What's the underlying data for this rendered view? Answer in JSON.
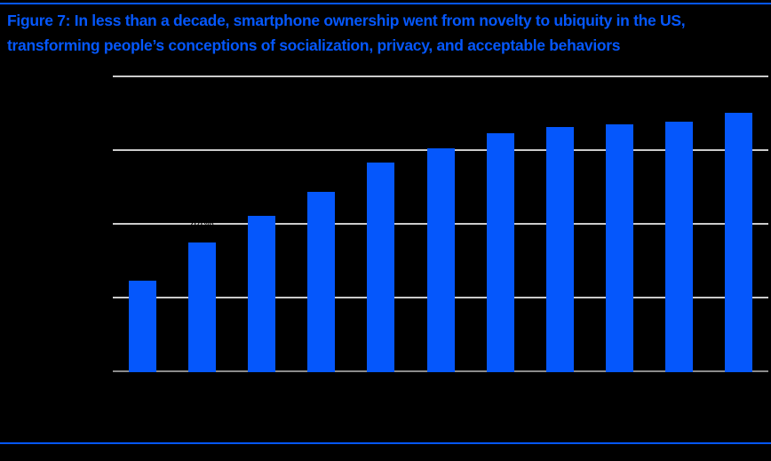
{
  "header": {
    "title_line1": "Figure 7: In less than a decade, smartphone ownership went from novelty to ubiquity in the US,",
    "title_line2": "transforming people’s conceptions of socialization, privacy, and acceptable behaviors"
  },
  "colors": {
    "background": "#000000",
    "accent_blue": "#0557FC",
    "bar_fill": "#0557FC",
    "gridline_gray": "#CBCBCB",
    "axis_line_gray": "#8B8B8B",
    "axis_text_black": "#000000"
  },
  "chart_data": {
    "type": "bar",
    "title": "Figure 7: In less than a decade, smartphone ownership went from novelty to ubiquity in the US, transforming people’s conceptions of socialization, privacy, and acceptable behaviors",
    "categories": [
      "",
      "",
      "",
      "",
      "",
      "",
      "",
      "",
      "",
      "",
      ""
    ],
    "values": [
      31,
      44,
      53,
      61,
      71,
      76,
      81,
      83,
      84,
      85,
      88
    ],
    "data_labels": [
      "31%",
      "44%",
      "53%",
      "61%",
      "71%",
      "76%",
      "81%",
      "83%",
      "84%",
      "85%",
      "88%"
    ],
    "visible_data_label": "44%",
    "visible_data_label_index": 1,
    "unit": "%",
    "xlabel": "",
    "ylabel": "",
    "ylim": [
      0,
      100
    ],
    "yticks": [
      0,
      25,
      50,
      75,
      100
    ],
    "ytick_labels": [
      "0%",
      "25%",
      "50%",
      "75%",
      "100%"
    ],
    "grid": true,
    "legend": false,
    "x_axis_labels_visible": false,
    "y_axis_labels_visible": false
  }
}
